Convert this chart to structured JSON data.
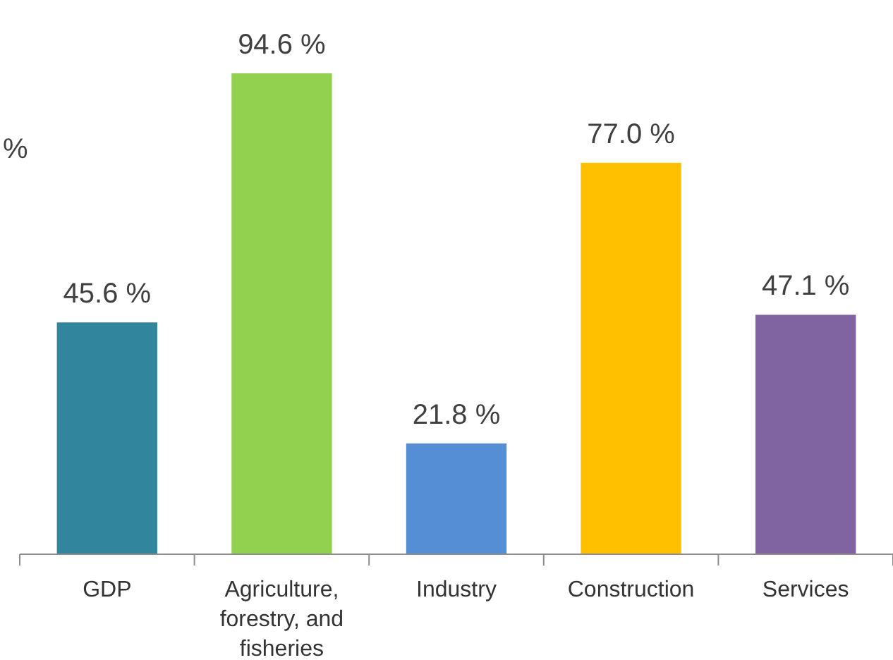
{
  "chart_data": {
    "type": "bar",
    "categories": [
      "GDP",
      "Agriculture, forestry, and fisheries",
      "Industry",
      "Construction",
      "Services"
    ],
    "values": [
      45.6,
      94.6,
      21.8,
      77.0,
      47.1
    ],
    "colors": [
      "#31859c",
      "#92d050",
      "#558ed5",
      "#ffc000",
      "#8064a2"
    ],
    "value_labels": [
      "45.6 %",
      "94.6 %",
      "21.8 %",
      "77.0 %",
      "47.1 %"
    ],
    "annotations": [
      "%"
    ]
  }
}
